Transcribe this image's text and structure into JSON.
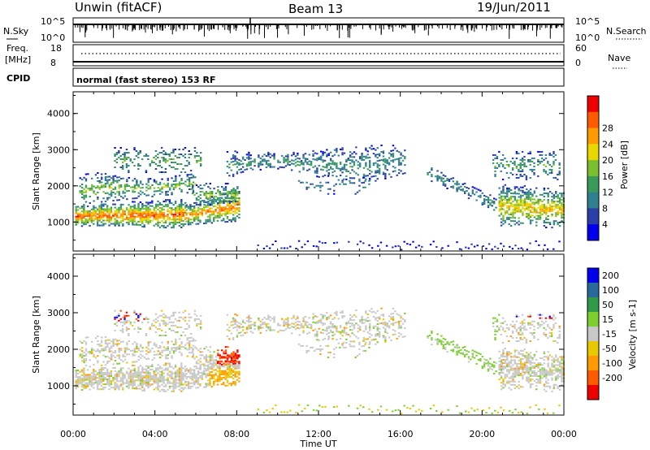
{
  "header": {
    "title": "Unwin (fitACF)",
    "beam": "Beam 13",
    "date": "19/Jun/2011"
  },
  "noise_panel": {
    "left_label": "N.Sky",
    "right_label": "N.Search",
    "left_ticks": [
      "10^5",
      "10^0"
    ],
    "right_ticks": [
      "10^5",
      "10^0"
    ]
  },
  "freq_panel": {
    "left_label_top": "Freq.",
    "left_label_bottom": "[MHz]",
    "right_label": "Nave",
    "left_ticks": [
      "18",
      "8"
    ],
    "right_ticks": [
      "60",
      "0"
    ]
  },
  "cpid": {
    "label": "CPID",
    "mode": "normal (fast stereo) 153 RF"
  },
  "colors": {
    "power_scale": [
      "#0000ee",
      "#2a3fa8",
      "#2f7f8f",
      "#3a9a5a",
      "#7cbf2e",
      "#e8d800",
      "#ff9a00",
      "#ff5a00",
      "#ee0000"
    ],
    "velocity_scale": [
      "#ee0000",
      "#ff5a00",
      "#ff9a00",
      "#e8c800",
      "#c8c8c8",
      "#7ccf2e",
      "#2f9a4a",
      "#2a6a9a",
      "#0000ee"
    ]
  },
  "chart_data": [
    {
      "type": "heatmap",
      "name": "power",
      "ylabel": "Slant Range [km]",
      "yticks": [
        "1000",
        "2000",
        "3000",
        "4000"
      ],
      "ylim": [
        200,
        4600
      ],
      "xlim": [
        0,
        24
      ],
      "colorbar_label": "Power [dB]",
      "colorbar_ticks": [
        "4",
        "8",
        "12",
        "16",
        "20",
        "24",
        "28"
      ]
    },
    {
      "type": "heatmap",
      "name": "velocity",
      "ylabel": "Slant Range [km]",
      "yticks": [
        "1000",
        "2000",
        "3000",
        "4000"
      ],
      "ylim": [
        200,
        4600
      ],
      "xlim": [
        0,
        24
      ],
      "colorbar_label": "Velocity [m s-1]",
      "colorbar_ticks": [
        "200",
        "100",
        "50",
        "15",
        "-15",
        "-50",
        "-100",
        "-200"
      ]
    }
  ],
  "xaxis": {
    "ticks": [
      "00:00",
      "04:00",
      "08:00",
      "12:00",
      "16:00",
      "20:00",
      "00:00"
    ],
    "label": "Time UT"
  }
}
